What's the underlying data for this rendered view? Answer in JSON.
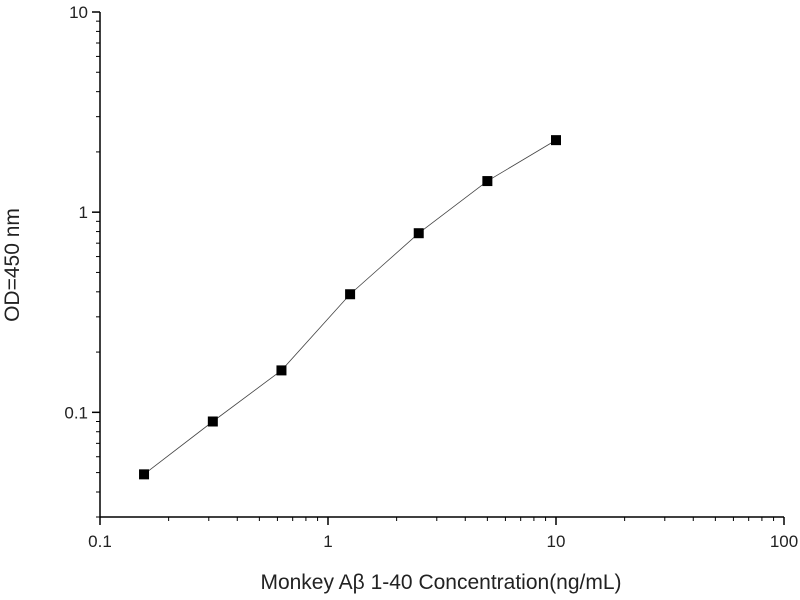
{
  "chart_data": {
    "type": "scatter",
    "title": "",
    "xlabel": "Monkey Aβ 1-40 Concentration(ng/mL)",
    "ylabel": "OD=450 nm",
    "x_scale": "log",
    "y_scale": "log",
    "xlim": [
      0.1,
      100
    ],
    "ylim": [
      0.03,
      10
    ],
    "x_ticks": [
      {
        "value": 0.1,
        "label": "0.1"
      },
      {
        "value": 1,
        "label": "1"
      },
      {
        "value": 10,
        "label": "10"
      },
      {
        "value": 100,
        "label": "100"
      }
    ],
    "y_ticks": [
      {
        "value": 0.1,
        "label": "0.1"
      },
      {
        "value": 1,
        "label": "1"
      },
      {
        "value": 10,
        "label": "10"
      }
    ],
    "grid": false,
    "marker": "square",
    "connected_line": true,
    "colors": {
      "marker": "#000000",
      "line": "#444444",
      "axis": "#000000"
    },
    "series": [
      {
        "x": [
          0.156,
          0.3125,
          0.625,
          1.25,
          2.5,
          5,
          10
        ],
        "y": [
          0.049,
          0.09,
          0.162,
          0.389,
          0.785,
          1.43,
          2.29
        ]
      }
    ]
  }
}
